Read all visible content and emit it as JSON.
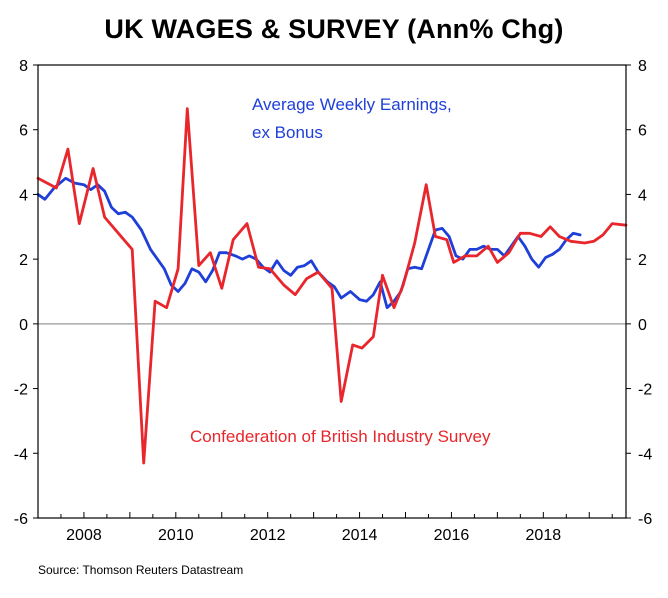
{
  "chart_data": {
    "type": "line",
    "title": "UK WAGES & SURVEY (Ann% Chg)",
    "source": "Source: Thomson Reuters Datastream",
    "xlim": [
      2007.0,
      2019.8
    ],
    "ylim": [
      -6,
      8
    ],
    "x_ticks": [
      2008,
      2010,
      2012,
      2014,
      2016,
      2018
    ],
    "x_tick_labels": [
      "2008",
      "2010",
      "2012",
      "2014",
      "2016",
      "2018"
    ],
    "y_ticks": [
      -6,
      -4,
      -2,
      0,
      2,
      4,
      6,
      8
    ],
    "y_tick_labels": [
      "-6",
      "-4",
      "-2",
      "0",
      "2",
      "4",
      "6",
      "8"
    ],
    "right_axis_mirrors_left": true,
    "grid": "horizontal line at 0",
    "colors": {
      "awe": "#1f3fd9",
      "cbi": "#e8262b",
      "zero_line": "#999999"
    },
    "series": [
      {
        "name": "Average Weekly Earnings, ex Bonus",
        "label_line1": "Average Weekly Earnings,",
        "label_line2": "ex Bonus",
        "color": "#1f3fd9",
        "points": [
          [
            2007.0,
            4.0
          ],
          [
            2007.15,
            3.85
          ],
          [
            2007.35,
            4.2
          ],
          [
            2007.6,
            4.5
          ],
          [
            2007.8,
            4.35
          ],
          [
            2008.0,
            4.3
          ],
          [
            2008.15,
            4.15
          ],
          [
            2008.3,
            4.3
          ],
          [
            2008.45,
            4.1
          ],
          [
            2008.6,
            3.6
          ],
          [
            2008.75,
            3.4
          ],
          [
            2008.9,
            3.45
          ],
          [
            2009.05,
            3.3
          ],
          [
            2009.25,
            2.9
          ],
          [
            2009.45,
            2.3
          ],
          [
            2009.6,
            2.0
          ],
          [
            2009.75,
            1.7
          ],
          [
            2009.9,
            1.2
          ],
          [
            2010.05,
            1.0
          ],
          [
            2010.2,
            1.25
          ],
          [
            2010.35,
            1.7
          ],
          [
            2010.5,
            1.6
          ],
          [
            2010.65,
            1.3
          ],
          [
            2010.8,
            1.65
          ],
          [
            2010.95,
            2.2
          ],
          [
            2011.1,
            2.2
          ],
          [
            2011.3,
            2.1
          ],
          [
            2011.45,
            2.0
          ],
          [
            2011.6,
            2.1
          ],
          [
            2011.75,
            2.0
          ],
          [
            2011.9,
            1.75
          ],
          [
            2012.05,
            1.6
          ],
          [
            2012.2,
            1.95
          ],
          [
            2012.35,
            1.65
          ],
          [
            2012.5,
            1.5
          ],
          [
            2012.65,
            1.75
          ],
          [
            2012.8,
            1.8
          ],
          [
            2012.95,
            1.95
          ],
          [
            2013.1,
            1.6
          ],
          [
            2013.3,
            1.3
          ],
          [
            2013.45,
            1.15
          ],
          [
            2013.6,
            0.8
          ],
          [
            2013.8,
            1.0
          ],
          [
            2014.0,
            0.75
          ],
          [
            2014.15,
            0.7
          ],
          [
            2014.3,
            0.9
          ],
          [
            2014.45,
            1.3
          ],
          [
            2014.6,
            0.5
          ],
          [
            2014.75,
            0.7
          ],
          [
            2014.9,
            1.0
          ],
          [
            2015.05,
            1.7
          ],
          [
            2015.2,
            1.75
          ],
          [
            2015.35,
            1.7
          ],
          [
            2015.5,
            2.3
          ],
          [
            2015.65,
            2.9
          ],
          [
            2015.8,
            2.95
          ],
          [
            2015.95,
            2.7
          ],
          [
            2016.1,
            2.1
          ],
          [
            2016.25,
            2.0
          ],
          [
            2016.4,
            2.3
          ],
          [
            2016.55,
            2.3
          ],
          [
            2016.7,
            2.4
          ],
          [
            2016.85,
            2.3
          ],
          [
            2017.0,
            2.3
          ],
          [
            2017.15,
            2.1
          ],
          [
            2017.3,
            2.4
          ],
          [
            2017.45,
            2.7
          ],
          [
            2017.6,
            2.4
          ],
          [
            2017.75,
            2.0
          ],
          [
            2017.9,
            1.75
          ],
          [
            2018.05,
            2.05
          ],
          [
            2018.2,
            2.15
          ],
          [
            2018.35,
            2.3
          ],
          [
            2018.5,
            2.6
          ],
          [
            2018.65,
            2.8
          ],
          [
            2018.8,
            2.75
          ]
        ]
      },
      {
        "name": "Confederation of British Industry Survey",
        "color": "#e8262b",
        "points": [
          [
            2007.0,
            4.5
          ],
          [
            2007.4,
            4.2
          ],
          [
            2007.65,
            5.4
          ],
          [
            2007.9,
            3.1
          ],
          [
            2008.2,
            4.8
          ],
          [
            2008.45,
            3.3
          ],
          [
            2008.75,
            2.8
          ],
          [
            2009.05,
            2.3
          ],
          [
            2009.3,
            -4.3
          ],
          [
            2009.55,
            0.7
          ],
          [
            2009.8,
            0.5
          ],
          [
            2010.05,
            1.7
          ],
          [
            2010.25,
            6.65
          ],
          [
            2010.5,
            1.8
          ],
          [
            2010.75,
            2.2
          ],
          [
            2011.0,
            1.1
          ],
          [
            2011.25,
            2.6
          ],
          [
            2011.55,
            3.1
          ],
          [
            2011.8,
            1.75
          ],
          [
            2012.05,
            1.7
          ],
          [
            2012.35,
            1.2
          ],
          [
            2012.6,
            0.9
          ],
          [
            2012.85,
            1.4
          ],
          [
            2013.1,
            1.6
          ],
          [
            2013.4,
            1.1
          ],
          [
            2013.6,
            -2.4
          ],
          [
            2013.85,
            -0.65
          ],
          [
            2014.05,
            -0.75
          ],
          [
            2014.3,
            -0.4
          ],
          [
            2014.5,
            1.5
          ],
          [
            2014.75,
            0.5
          ],
          [
            2014.95,
            1.2
          ],
          [
            2015.2,
            2.5
          ],
          [
            2015.45,
            4.3
          ],
          [
            2015.65,
            2.7
          ],
          [
            2015.9,
            2.6
          ],
          [
            2016.05,
            1.9
          ],
          [
            2016.3,
            2.1
          ],
          [
            2016.55,
            2.1
          ],
          [
            2016.8,
            2.4
          ],
          [
            2017.0,
            1.9
          ],
          [
            2017.25,
            2.2
          ],
          [
            2017.5,
            2.8
          ],
          [
            2017.7,
            2.8
          ],
          [
            2017.95,
            2.7
          ],
          [
            2018.15,
            3.0
          ],
          [
            2018.35,
            2.7
          ],
          [
            2018.6,
            2.55
          ],
          [
            2018.9,
            2.5
          ],
          [
            2019.1,
            2.55
          ],
          [
            2019.3,
            2.75
          ],
          [
            2019.5,
            3.1
          ],
          [
            2019.8,
            3.05
          ]
        ]
      }
    ]
  }
}
